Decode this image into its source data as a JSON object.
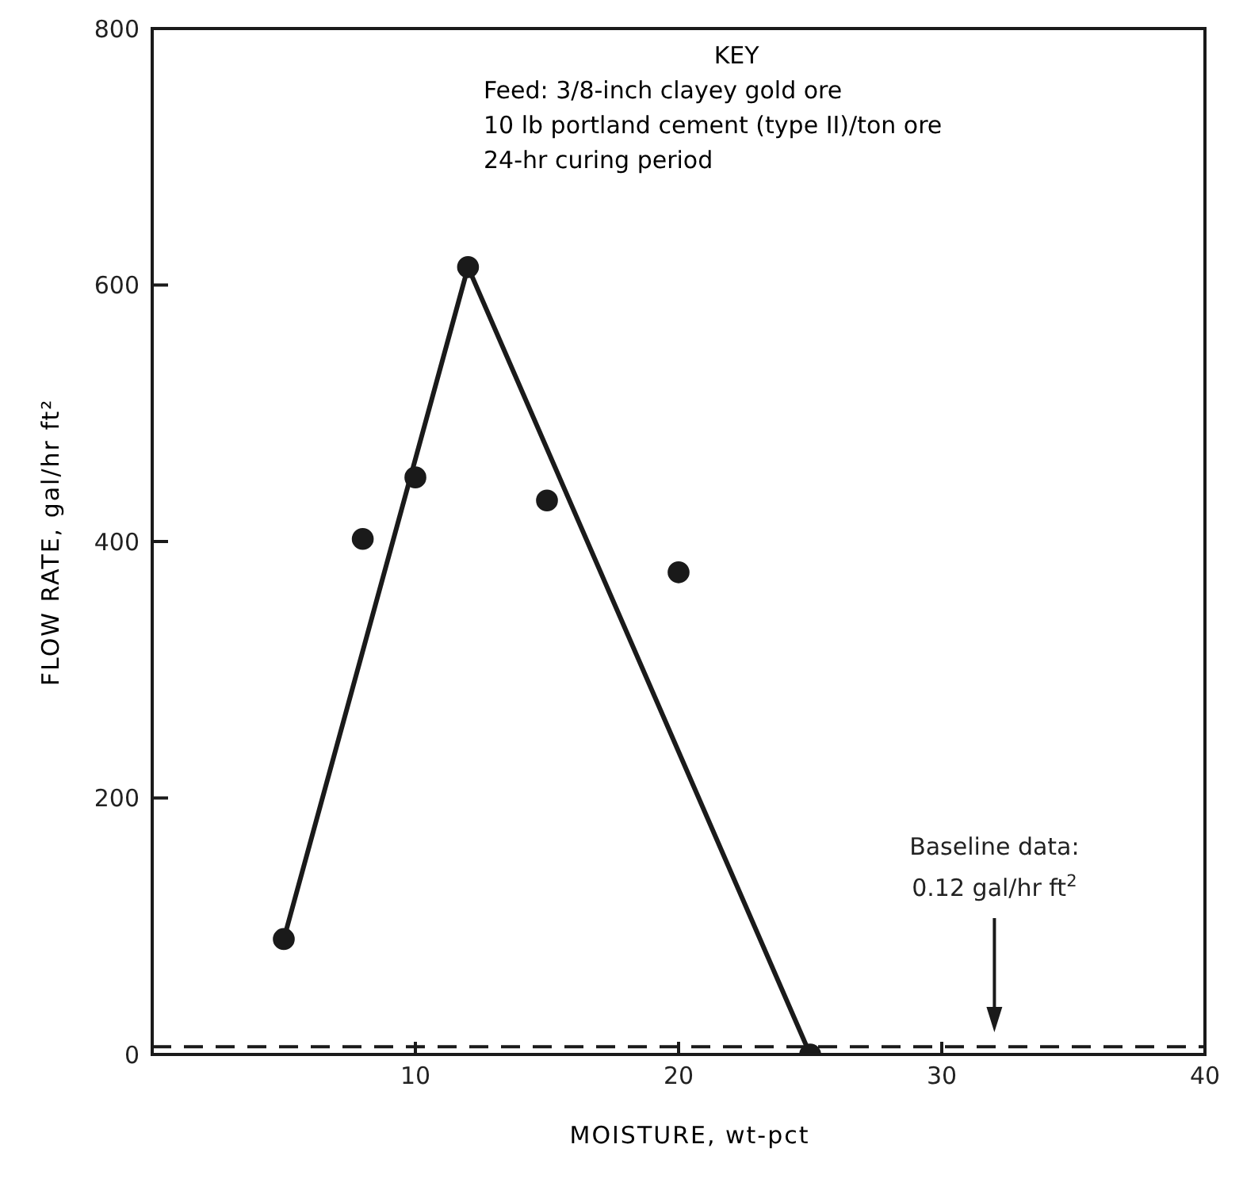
{
  "chart_data": {
    "type": "scatter",
    "xlabel": "MOISTURE, wt-pct",
    "ylabel": "FLOW RATE, gal/hr ft²",
    "xlim": [
      0,
      40
    ],
    "xticks": [
      10,
      20,
      30,
      40
    ],
    "ylim": [
      0,
      800
    ],
    "yticks": [
      0,
      200,
      400,
      600,
      800
    ],
    "grid": false,
    "marker": "circle",
    "series": [
      {
        "color": "#1a1a1a",
        "x": [
          5,
          8,
          10,
          12,
          15,
          20,
          25
        ],
        "values": [
          90,
          402,
          450,
          614,
          432,
          376,
          0
        ]
      },
      {
        "type": "line",
        "color": "#1a1a1a",
        "x": [
          5,
          12,
          25
        ],
        "values": [
          90,
          614,
          0
        ],
        "marker": "none",
        "line_style": "solid"
      }
    ],
    "ref_lines": [
      {
        "axis": "y",
        "value": 6,
        "line_style": "dashed",
        "color": "#1a1a1a"
      }
    ],
    "annotations": [
      "KEY",
      "Feed:  3/8-inch clayey gold ore",
      "10 lb  portland cement (type II)/ton ore",
      "24-hr curing period",
      "Baseline data:\n0.12 gal/hr ft$^{2}$"
    ]
  }
}
